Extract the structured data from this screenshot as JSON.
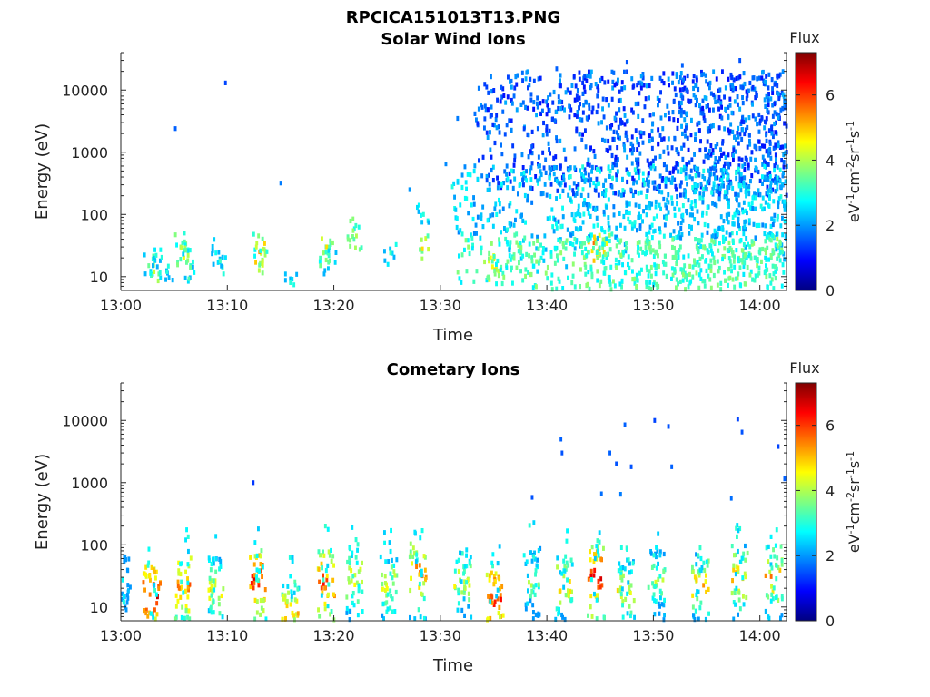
{
  "title": "RPCICA151013T13.PNG",
  "chart_data": [
    {
      "type": "heatmap",
      "title": "Solar Wind Ions",
      "xlabel": "Time",
      "ylabel": "Energy (eV)",
      "x_ticks": [
        "13:00",
        "13:10",
        "13:20",
        "13:30",
        "13:40",
        "13:50",
        "14:00"
      ],
      "y_ticks": [
        "10",
        "100",
        "1000",
        "10000"
      ],
      "y_scale": "log",
      "ylim": [
        6,
        40000
      ],
      "xlim_minutes": [
        0,
        62.5
      ],
      "colorbar": {
        "title": "Flux",
        "label": "eV-1cm-2sr-1s-1",
        "ticks": [
          "0",
          "2",
          "4",
          "6"
        ],
        "range": [
          0,
          7.3
        ]
      },
      "cells": [
        [
          2.5,
          15,
          3.5
        ],
        [
          3.0,
          12,
          4.2
        ],
        [
          3.2,
          22,
          3.0
        ],
        [
          4.2,
          12,
          3.0
        ],
        [
          5.5,
          30,
          3.8
        ],
        [
          5.8,
          20,
          4.5
        ],
        [
          6.2,
          22,
          4.0
        ],
        [
          6.4,
          14,
          3.5
        ],
        [
          8.8,
          24,
          2.8
        ],
        [
          9.2,
          18,
          3.2
        ],
        [
          12.6,
          30,
          4.2
        ],
        [
          12.9,
          25,
          5.3
        ],
        [
          13.2,
          18,
          4.2
        ],
        [
          15.8,
          8,
          3.0
        ],
        [
          18.9,
          24,
          3.8
        ],
        [
          19.2,
          30,
          4.8
        ],
        [
          19.5,
          18,
          3.5
        ],
        [
          21.7,
          55,
          3.8
        ],
        [
          22.0,
          45,
          4.0
        ],
        [
          25.2,
          24,
          3.2
        ],
        [
          28.2,
          28,
          4.8
        ],
        [
          28.3,
          100,
          3.0
        ],
        [
          32.5,
          30,
          3.8
        ],
        [
          34.6,
          20,
          4.5
        ],
        [
          35.0,
          13,
          4.8
        ],
        [
          36.0,
          40,
          3.2
        ],
        [
          37.2,
          32,
          3.8
        ],
        [
          39.2,
          18,
          3.5
        ],
        [
          41.2,
          24,
          3.8
        ],
        [
          42.5,
          40,
          3.3
        ],
        [
          44.3,
          35,
          5.6
        ],
        [
          44.8,
          28,
          5.2
        ],
        [
          45.5,
          34,
          4.5
        ],
        [
          47.0,
          25,
          3.5
        ],
        [
          49.5,
          30,
          3.8
        ],
        [
          52.2,
          20,
          3.5
        ],
        [
          54.0,
          28,
          3.5
        ],
        [
          57.0,
          35,
          3.8
        ],
        [
          59.0,
          22,
          3.6
        ],
        [
          61.5,
          40,
          4.0
        ],
        [
          62.0,
          25,
          3.2
        ],
        [
          0.0,
          0,
          0
        ]
      ],
      "sparse_points": [
        [
          5.0,
          2400,
          1.6
        ],
        [
          9.7,
          13000,
          1.4
        ],
        [
          14.9,
          320,
          1.8
        ],
        [
          27.0,
          250,
          2.0
        ],
        [
          30.4,
          650,
          1.9
        ],
        [
          31.5,
          3500,
          1.8
        ],
        [
          34.1,
          5500,
          1.7
        ],
        [
          40.8,
          22000,
          1.6
        ],
        [
          47.4,
          28000,
          1.5
        ],
        [
          52.6,
          25000,
          1.6
        ],
        [
          58.0,
          30000,
          1.5
        ]
      ],
      "noise_region": {
        "band_high_eV": [
          200,
          20000
        ],
        "band_high_time": [
          33.0,
          62.5
        ],
        "band_high_flux": [
          1.0,
          2.2
        ],
        "band_mid_eV": [
          40,
          600
        ],
        "band_mid_time": [
          31.0,
          62.5
        ],
        "band_mid_flux": [
          1.8,
          3.0
        ],
        "band_low_eV": [
          6,
          40
        ],
        "band_low_time": [
          31.5,
          62.5
        ],
        "band_low_flux": [
          2.6,
          3.8
        ]
      }
    },
    {
      "type": "heatmap",
      "title": "Cometary Ions",
      "xlabel": "Time",
      "ylabel": "Energy (eV)",
      "x_ticks": [
        "13:00",
        "13:10",
        "13:20",
        "13:30",
        "13:40",
        "13:50",
        "14:00"
      ],
      "y_ticks": [
        "10",
        "100",
        "1000",
        "10000"
      ],
      "y_scale": "log",
      "ylim": [
        6,
        40000
      ],
      "xlim_minutes": [
        0,
        62.5
      ],
      "colorbar": {
        "title": "Flux",
        "label": "eV-1cm-2sr-1s-1",
        "ticks": [
          "0",
          "2",
          "4",
          "6"
        ],
        "range": [
          0,
          7.3
        ]
      },
      "columns": [
        [
          0.0,
          25,
          3.0
        ],
        [
          2.8,
          14,
          7.0
        ],
        [
          5.8,
          22,
          6.2
        ],
        [
          8.8,
          20,
          5.2
        ],
        [
          12.8,
          28,
          6.8
        ],
        [
          15.8,
          8,
          5.5
        ],
        [
          19.2,
          25,
          6.5
        ],
        [
          21.8,
          32,
          5.3
        ],
        [
          25.0,
          22,
          5.0
        ],
        [
          27.8,
          35,
          6.0
        ],
        [
          32.0,
          25,
          5.0
        ],
        [
          35.0,
          14,
          6.8
        ],
        [
          38.5,
          28,
          4.5
        ],
        [
          41.5,
          22,
          5.3
        ],
        [
          44.5,
          30,
          6.8
        ],
        [
          47.3,
          18,
          5.0
        ],
        [
          50.2,
          25,
          4.5
        ],
        [
          54.3,
          22,
          5.4
        ],
        [
          58.0,
          30,
          5.5
        ],
        [
          61.2,
          30,
          5.7
        ]
      ],
      "sparse_points": [
        [
          12.3,
          1000,
          1.3
        ],
        [
          38.5,
          580,
          1.5
        ],
        [
          41.2,
          5000,
          1.6
        ],
        [
          41.3,
          3000,
          1.5
        ],
        [
          45.8,
          3000,
          1.6
        ],
        [
          46.4,
          2000,
          1.5
        ],
        [
          47.2,
          8500,
          1.6
        ],
        [
          47.8,
          1800,
          1.5
        ],
        [
          50.0,
          10000,
          1.4
        ],
        [
          51.3,
          8000,
          1.5
        ],
        [
          51.6,
          1800,
          1.6
        ],
        [
          57.8,
          10500,
          1.4
        ],
        [
          58.2,
          6500,
          1.5
        ],
        [
          61.6,
          3800,
          1.4
        ],
        [
          62.2,
          1150,
          1.6
        ],
        [
          45.0,
          660,
          1.7
        ],
        [
          46.8,
          650,
          1.8
        ],
        [
          57.2,
          560,
          1.7
        ]
      ]
    }
  ]
}
